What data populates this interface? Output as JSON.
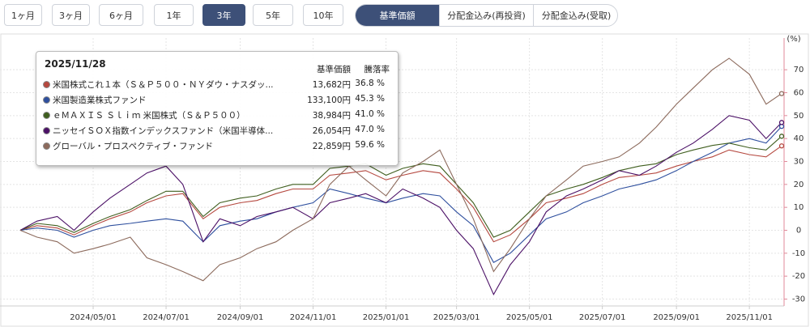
{
  "range_buttons": [
    "1ヶ月",
    "3ヶ月",
    "6ヶ月",
    "1年",
    "3年",
    "5年",
    "10年"
  ],
  "active_range": 4,
  "mode_tabs": [
    "基準価額",
    "分配金込み(再投資)",
    "分配金込み(受取)"
  ],
  "active_mode": 0,
  "chart_data": {
    "type": "line",
    "y_unit": "(%)",
    "x": [
      "2024/03/01",
      "2024/03/15",
      "2024/04/01",
      "2024/04/15",
      "2024/05/01",
      "2024/05/15",
      "2024/06/01",
      "2024/06/15",
      "2024/07/01",
      "2024/07/15",
      "2024/08/01",
      "2024/08/15",
      "2024/09/01",
      "2024/09/15",
      "2024/10/01",
      "2024/10/15",
      "2024/11/01",
      "2024/11/15",
      "2024/12/01",
      "2024/12/15",
      "2025/01/01",
      "2025/01/15",
      "2025/02/01",
      "2025/02/15",
      "2025/03/01",
      "2025/03/15",
      "2025/04/01",
      "2025/04/15",
      "2025/05/01",
      "2025/05/15",
      "2025/06/01",
      "2025/06/15",
      "2025/07/01",
      "2025/07/15",
      "2025/08/01",
      "2025/08/15",
      "2025/09/01",
      "2025/09/15",
      "2025/10/01",
      "2025/10/15",
      "2025/11/01",
      "2025/11/15",
      "2025/11/28"
    ],
    "xlim": [
      "2024/03/01",
      "2025/11/28"
    ],
    "xticks": [
      "2024/05/01",
      "2024/07/01",
      "2024/09/01",
      "2024/11/01",
      "2025/01/01",
      "2025/03/01",
      "2025/05/01",
      "2025/07/01",
      "2025/09/01",
      "2025/11/01"
    ],
    "ylim": [
      -33,
      81
    ],
    "yticks": [
      -30,
      -20,
      -10,
      0,
      10,
      20,
      30,
      40,
      50,
      60,
      70
    ],
    "grid": true,
    "series": [
      {
        "name": "米国株式これ１本（Ｓ＆Ｐ５００・ＮＹダウ・ナスダッ...",
        "color": "#b5483f",
        "values": [
          0,
          2,
          1,
          -2,
          2,
          5,
          8,
          12,
          15,
          16,
          5,
          10,
          12,
          13,
          16,
          18,
          18,
          24,
          25,
          26,
          22,
          24,
          26,
          25,
          18,
          10,
          -5,
          -2,
          5,
          12,
          14,
          16,
          20,
          23,
          24,
          25,
          28,
          30,
          32,
          35,
          33,
          32,
          36.8
        ]
      },
      {
        "name": "米国製造業株式ファンド",
        "color": "#2e4f9e",
        "values": [
          0,
          1,
          0,
          -3,
          0,
          2,
          3,
          4,
          5,
          4,
          -5,
          2,
          4,
          5,
          8,
          10,
          12,
          18,
          16,
          14,
          12,
          14,
          16,
          15,
          8,
          2,
          -14,
          -10,
          -2,
          5,
          8,
          12,
          15,
          18,
          20,
          22,
          26,
          30,
          34,
          38,
          40,
          38,
          45.3
        ]
      },
      {
        "name": "ｅＭＡＸＩＳ Ｓｌｉｍ 米国株式（Ｓ＆Ｐ５００）",
        "color": "#3f5e1e",
        "values": [
          0,
          3,
          2,
          -1,
          3,
          6,
          9,
          13,
          17,
          17,
          6,
          12,
          14,
          15,
          18,
          20,
          20,
          27,
          28,
          29,
          24,
          27,
          29,
          28,
          20,
          12,
          -3,
          0,
          8,
          15,
          18,
          20,
          23,
          26,
          28,
          29,
          33,
          35,
          37,
          38,
          36,
          35,
          41
        ]
      },
      {
        "name": "ニッセイＳＯＸ指数インデックスファンド（米国半導体...",
        "color": "#4b1066",
        "values": [
          0,
          4,
          6,
          0,
          8,
          14,
          20,
          25,
          28,
          20,
          -5,
          5,
          2,
          6,
          8,
          10,
          5,
          12,
          14,
          16,
          12,
          18,
          14,
          10,
          0,
          -8,
          -28,
          -15,
          -5,
          8,
          15,
          18,
          22,
          26,
          24,
          28,
          34,
          38,
          44,
          50,
          48,
          40,
          47
        ]
      },
      {
        "name": "グローバル・プロスペクティブ・ファンド",
        "color": "#8c6a5c",
        "values": [
          0,
          -3,
          -5,
          -10,
          -8,
          -6,
          -3,
          -12,
          -15,
          -18,
          -22,
          -15,
          -12,
          -8,
          -5,
          0,
          5,
          20,
          28,
          22,
          15,
          25,
          30,
          35,
          20,
          5,
          -18,
          -8,
          5,
          15,
          22,
          28,
          30,
          32,
          38,
          45,
          55,
          62,
          70,
          75,
          68,
          55,
          59.6
        ]
      }
    ]
  },
  "tooltip": {
    "date": "2025/11/28",
    "headers": [
      "基準価額",
      "騰落率"
    ],
    "rows": [
      {
        "price": "13,682円",
        "change": "36.8 %"
      },
      {
        "price": "133,100円",
        "change": "45.3 %"
      },
      {
        "price": "38,984円",
        "change": "41.0 %"
      },
      {
        "price": "26,054円",
        "change": "47.0 %"
      },
      {
        "price": "22,859円",
        "change": "59.6 %"
      }
    ]
  }
}
